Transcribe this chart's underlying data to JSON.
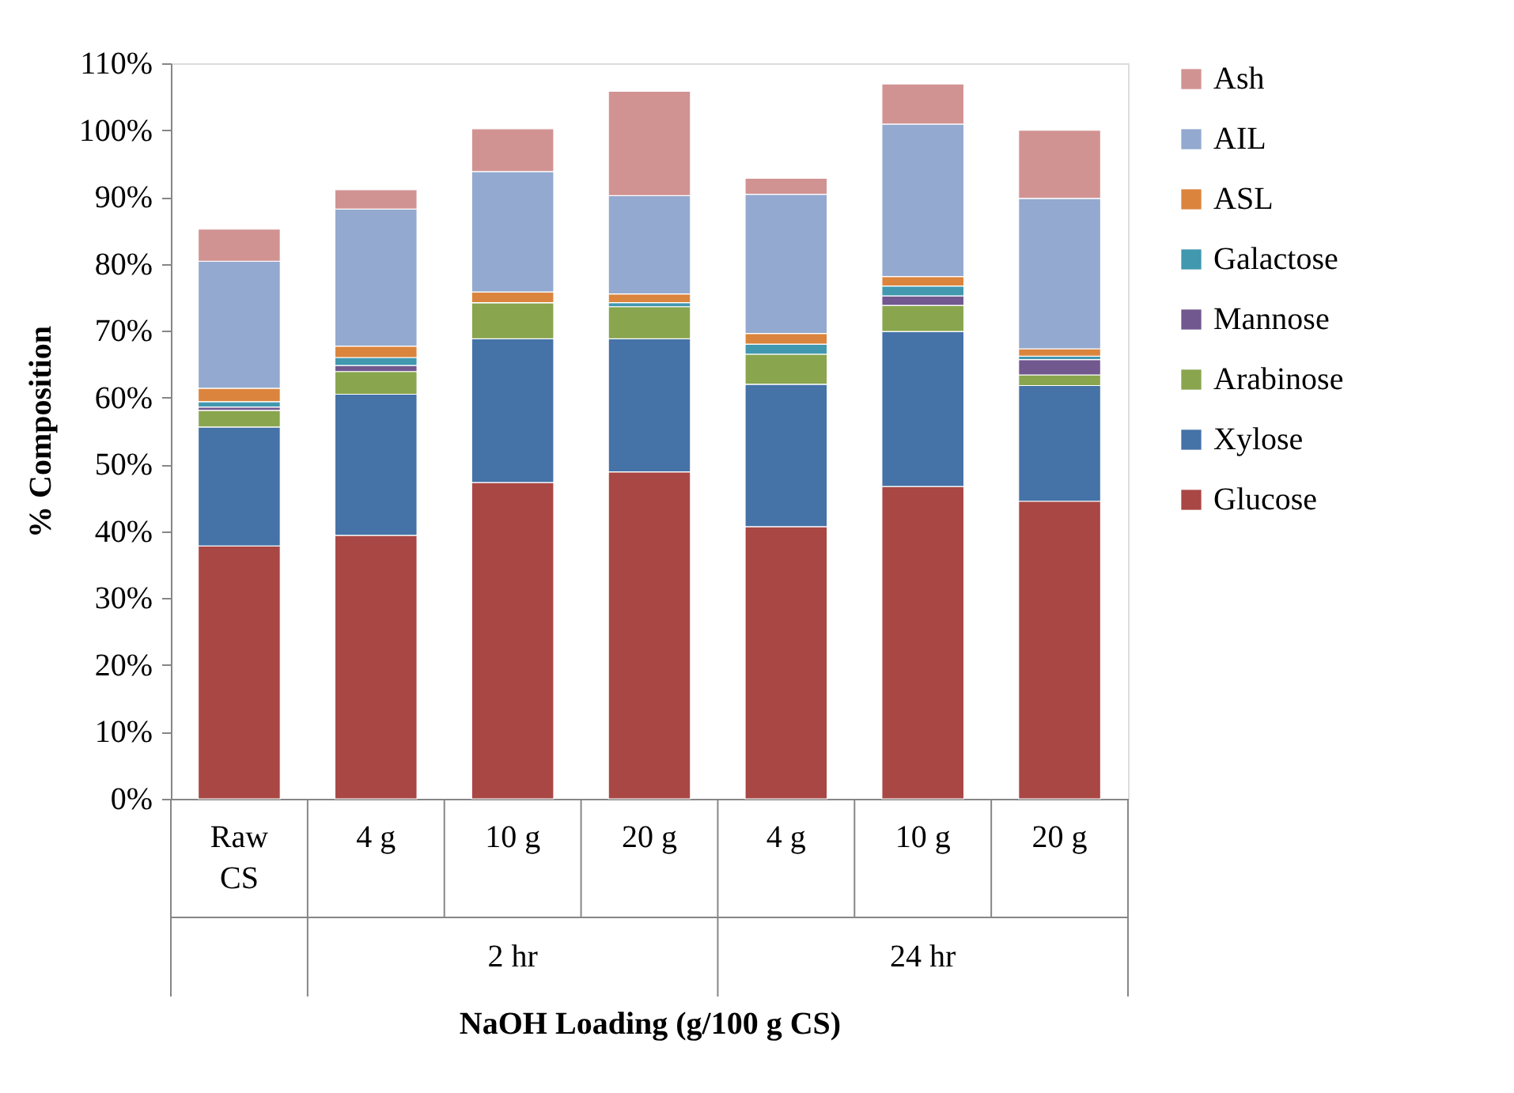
{
  "chart_data": {
    "type": "bar",
    "stacked": true,
    "xlabel": "NaOH Loading (g/100 g CS)",
    "ylabel": "% Composition",
    "categories": [
      "Raw CS",
      "4 g",
      "10 g",
      "20 g",
      "4 g",
      "10 g",
      "20 g"
    ],
    "annotations": [
      "2 hr",
      "24 hr"
    ],
    "series": [
      {
        "name": "Glucose",
        "color": "#a94744",
        "values": [
          37.8,
          39.4,
          47.3,
          48.9,
          40.7,
          46.7,
          44.5
        ]
      },
      {
        "name": "Xylose",
        "color": "#4572a7",
        "values": [
          17.8,
          21.1,
          21.5,
          19.9,
          21.3,
          23.2,
          17.3
        ]
      },
      {
        "name": "Arabinose",
        "color": "#89a54e",
        "values": [
          2.5,
          3.4,
          5.4,
          4.8,
          4.5,
          3.9,
          1.6
        ]
      },
      {
        "name": "Mannose",
        "color": "#71588f",
        "values": [
          0.5,
          0.9,
          0,
          null,
          0,
          1.4,
          2.3
        ]
      },
      {
        "name": "Galactose",
        "color": "#4198af",
        "values": [
          0.8,
          1.2,
          0,
          0.6,
          1.5,
          1.5,
          0.5
        ]
      },
      {
        "name": "ASL",
        "color": "#db843d",
        "values": [
          2.0,
          1.7,
          1.6,
          1.3,
          1.6,
          1.4,
          1.1
        ]
      },
      {
        "name": "AIL",
        "color": "#93a9cf",
        "values": [
          19.0,
          20.5,
          18.0,
          14.7,
          20.8,
          22.8,
          22.5
        ]
      },
      {
        "name": "Ash",
        "color": "#d19392",
        "values": [
          4.8,
          2.9,
          6.4,
          15.6,
          2.4,
          6.0,
          10.2
        ]
      }
    ],
    "ylim": [
      0,
      110
    ],
    "yticks": [
      {
        "value": 0,
        "label": "0%"
      },
      {
        "value": 10,
        "label": "10%"
      },
      {
        "value": 20,
        "label": "20%"
      },
      {
        "value": 30,
        "label": "30%"
      },
      {
        "value": 40,
        "label": "40%"
      },
      {
        "value": 50,
        "label": "50%"
      },
      {
        "value": 60,
        "label": "60%"
      },
      {
        "value": 70,
        "label": "70%"
      },
      {
        "value": 80,
        "label": "80%"
      },
      {
        "value": 90,
        "label": "90%"
      },
      {
        "value": 100,
        "label": "100%"
      },
      {
        "value": 110,
        "label": "110%"
      }
    ],
    "grid": false,
    "legend": "right"
  }
}
